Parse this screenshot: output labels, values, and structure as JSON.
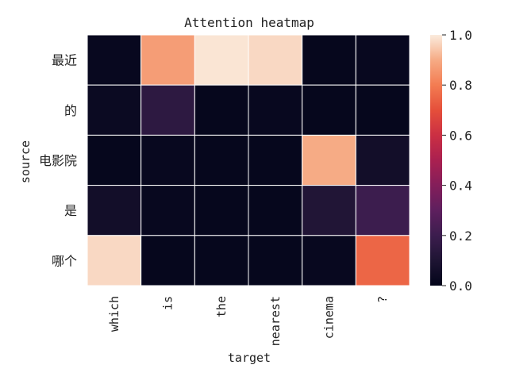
{
  "chart_data": {
    "type": "heatmap",
    "title": "Attention heatmap",
    "xlabel": "target",
    "ylabel": "source",
    "x_categories": [
      "which",
      "is",
      "the",
      "nearest",
      "cinema",
      "?"
    ],
    "y_categories": [
      "最近",
      "的",
      "电影院",
      "是",
      "哪个"
    ],
    "values": [
      [
        0.02,
        0.87,
        0.99,
        0.97,
        0.01,
        0.02
      ],
      [
        0.03,
        0.15,
        0.01,
        0.02,
        0.01,
        0.01
      ],
      [
        0.01,
        0.02,
        0.01,
        0.01,
        0.9,
        0.06
      ],
      [
        0.06,
        0.02,
        0.01,
        0.01,
        0.11,
        0.2
      ],
      [
        0.97,
        0.01,
        0.01,
        0.01,
        0.02,
        0.75
      ]
    ],
    "colorbar": {
      "min": 0.0,
      "max": 1.0,
      "ticks": [
        "0.0",
        "0.2",
        "0.4",
        "0.6",
        "0.8",
        "1.0"
      ],
      "colormap": "rocket"
    },
    "grid": false,
    "cell_separator_color": "#ffffff"
  }
}
